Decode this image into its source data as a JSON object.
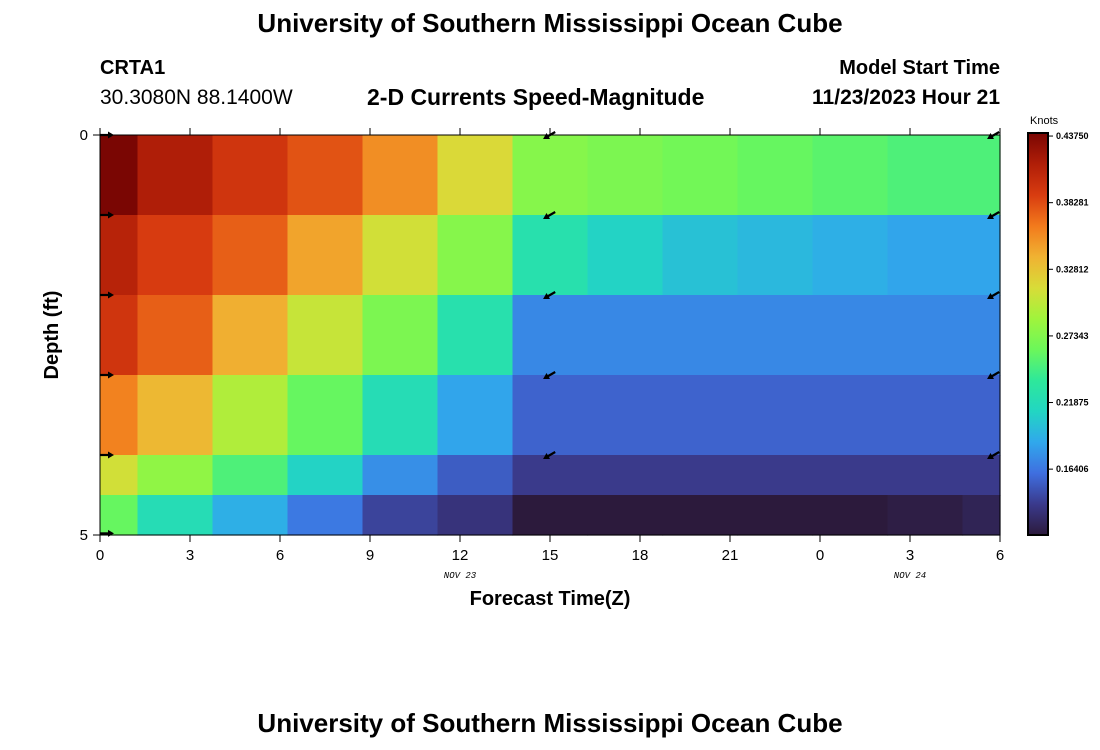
{
  "header": {
    "title": "University of Southern Mississippi Ocean Cube",
    "station": "CRTA1",
    "coordinates": "30.3080N  88.1400W",
    "subtitle": "2-D Currents Speed-Magnitude",
    "model_start_label": "Model Start Time",
    "model_start_value": "11/23/2023 Hour 21"
  },
  "footer": {
    "title": "University of Southern Mississippi Ocean Cube"
  },
  "colorbar": {
    "unit": "Knots",
    "labels": [
      "0.43750",
      "0.38281",
      "0.32812",
      "0.27343",
      "0.21875",
      "0.16406"
    ],
    "label_values": [
      0.4375,
      0.38281,
      0.32812,
      0.27343,
      0.21875,
      0.16406
    ],
    "range": [
      0.11,
      0.44
    ],
    "colors": [
      "#2c1a3c",
      "#3a3a8c",
      "#3f6fe0",
      "#30a8ec",
      "#22d6c2",
      "#2ee89a",
      "#6cf75a",
      "#a0f43c",
      "#d8dc38",
      "#f0b232",
      "#f27a1c",
      "#d83c10",
      "#b01e08",
      "#7a0603"
    ]
  },
  "chart_data": {
    "type": "heatmap",
    "title": "2-D Currents Speed-Magnitude",
    "xlabel": "Forecast Time(Z)",
    "ylabel": "Depth (ft)",
    "x_tick_labels": [
      "0",
      "3",
      "6",
      "9",
      "12",
      "15",
      "18",
      "21",
      "0",
      "3",
      "6"
    ],
    "x_hours": [
      0,
      3,
      6,
      9,
      12,
      15,
      18,
      21,
      24,
      27,
      30
    ],
    "xlim": [
      0,
      30
    ],
    "y_tick_labels": [
      "0",
      "5"
    ],
    "ylim": [
      5,
      0
    ],
    "date_labels": [
      {
        "text": "NOV 23",
        "hour": 12
      },
      {
        "text": "NOV 24",
        "hour": 27
      }
    ],
    "time_hours": [
      0,
      2.5,
      5,
      7.5,
      10,
      12.5,
      15,
      17.5,
      20,
      22.5,
      25,
      27.5,
      30
    ],
    "depth_ft": [
      0,
      1,
      2,
      3,
      4,
      5
    ],
    "values": [
      [
        0.44,
        0.415,
        0.395,
        0.38,
        0.355,
        0.315,
        0.275,
        0.27,
        0.265,
        0.26,
        0.255,
        0.25,
        0.25
      ],
      [
        0.41,
        0.39,
        0.375,
        0.345,
        0.31,
        0.275,
        0.225,
        0.21,
        0.2,
        0.195,
        0.19,
        0.185,
        0.185
      ],
      [
        0.395,
        0.375,
        0.34,
        0.305,
        0.27,
        0.225,
        0.172,
        0.172,
        0.172,
        0.172,
        0.172,
        0.172,
        0.172
      ],
      [
        0.36,
        0.335,
        0.295,
        0.26,
        0.22,
        0.185,
        0.155,
        0.155,
        0.155,
        0.155,
        0.155,
        0.155,
        0.155
      ],
      [
        0.31,
        0.28,
        0.25,
        0.21,
        0.175,
        0.152,
        0.135,
        0.135,
        0.135,
        0.135,
        0.135,
        0.135,
        0.135
      ],
      [
        0.26,
        0.22,
        0.19,
        0.165,
        0.14,
        0.13,
        0.095,
        0.1,
        0.105,
        0.108,
        0.11,
        0.113,
        0.118
      ]
    ],
    "vectors": [
      {
        "hour": 0,
        "depth_ft": 0,
        "direction": "east"
      },
      {
        "hour": 0,
        "depth_ft": 1,
        "direction": "east"
      },
      {
        "hour": 0,
        "depth_ft": 2,
        "direction": "east"
      },
      {
        "hour": 0,
        "depth_ft": 3,
        "direction": "east"
      },
      {
        "hour": 0,
        "depth_ft": 4,
        "direction": "east"
      },
      {
        "hour": 0,
        "depth_ft": 5,
        "direction": "east"
      },
      {
        "hour": 15,
        "depth_ft": 0,
        "direction": "southwest"
      },
      {
        "hour": 15,
        "depth_ft": 1,
        "direction": "southwest"
      },
      {
        "hour": 15,
        "depth_ft": 2,
        "direction": "southwest"
      },
      {
        "hour": 15,
        "depth_ft": 3,
        "direction": "southwest"
      },
      {
        "hour": 15,
        "depth_ft": 4,
        "direction": "southwest"
      },
      {
        "hour": 30,
        "depth_ft": 0,
        "direction": "southwest"
      },
      {
        "hour": 30,
        "depth_ft": 1,
        "direction": "southwest"
      },
      {
        "hour": 30,
        "depth_ft": 2,
        "direction": "southwest"
      },
      {
        "hour": 30,
        "depth_ft": 3,
        "direction": "southwest"
      },
      {
        "hour": 30,
        "depth_ft": 4,
        "direction": "southwest"
      }
    ]
  }
}
